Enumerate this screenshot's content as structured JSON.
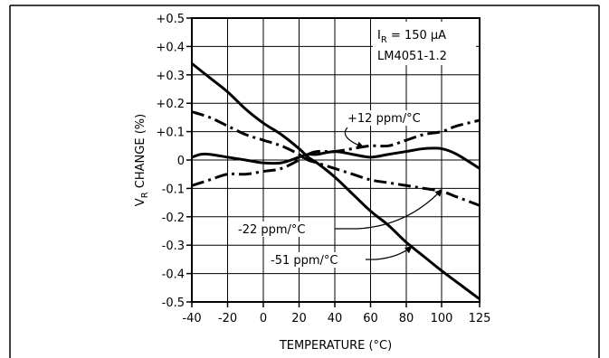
{
  "chart_data": {
    "type": "line",
    "xlabel": "TEMPERATURE (°C)",
    "ylabel_main": "V",
    "ylabel_sub": "R",
    "ylabel_rest": " CHANGE (%)",
    "xlim": [
      -40,
      125
    ],
    "ylim": [
      -0.5,
      0.5
    ],
    "x_ticks": [
      -40,
      -20,
      0,
      20,
      40,
      60,
      80,
      100,
      125
    ],
    "x_tick_labels": [
      "-40",
      "-20",
      "0",
      "20",
      "40",
      "60",
      "80",
      "100",
      "125"
    ],
    "y_ticks": [
      0.5,
      0.4,
      0.3,
      0.2,
      0.1,
      0,
      -0.1,
      -0.2,
      -0.3,
      -0.4,
      -0.5
    ],
    "y_tick_labels": [
      "+0.5",
      "+0.4",
      "+0.3",
      "+0.2",
      "+0.1",
      "0",
      "-0.1",
      "-0.2",
      "-0.3",
      "-0.4",
      "-0.5"
    ],
    "grid": true,
    "conditions": {
      "line1_main": "I",
      "line1_sub": "R",
      "line1_rest": " = 150 μA",
      "line2": "LM4051-1.2"
    },
    "series": [
      {
        "name": "",
        "style": "solid",
        "x": [
          -40,
          -30,
          -20,
          -10,
          0,
          10,
          20,
          25,
          30,
          40,
          50,
          60,
          70,
          80,
          90,
          100,
          110,
          125
        ],
        "y": [
          0.34,
          0.29,
          0.24,
          0.18,
          0.13,
          0.09,
          0.04,
          0.01,
          -0.01,
          -0.06,
          -0.12,
          -0.18,
          -0.23,
          -0.29,
          -0.34,
          -0.39,
          -0.43,
          -0.49
        ]
      },
      {
        "name": "",
        "style": "solid",
        "x": [
          -40,
          -35,
          -30,
          -20,
          -10,
          0,
          10,
          20,
          25,
          30,
          40,
          50,
          60,
          70,
          80,
          90,
          100,
          110,
          125
        ],
        "y": [
          0.01,
          0.02,
          0.02,
          0.01,
          0.0,
          -0.01,
          -0.01,
          0.01,
          0.02,
          0.02,
          0.03,
          0.02,
          0.01,
          0.02,
          0.03,
          0.04,
          0.04,
          0.02,
          -0.03
        ]
      },
      {
        "name": "",
        "style": "dashdot",
        "x": [
          -40,
          -30,
          -20,
          -10,
          0,
          10,
          20,
          25,
          30,
          40,
          50,
          60,
          70,
          80,
          90,
          100,
          110,
          125
        ],
        "y": [
          0.17,
          0.15,
          0.12,
          0.09,
          0.07,
          0.05,
          0.02,
          0.0,
          -0.01,
          -0.03,
          -0.05,
          -0.07,
          -0.08,
          -0.09,
          -0.1,
          -0.11,
          -0.13,
          -0.16
        ]
      },
      {
        "name": "",
        "style": "dashdot",
        "x": [
          -40,
          -30,
          -20,
          -10,
          0,
          10,
          20,
          25,
          30,
          40,
          50,
          60,
          70,
          80,
          90,
          100,
          110,
          125
        ],
        "y": [
          -0.09,
          -0.07,
          -0.05,
          -0.05,
          -0.04,
          -0.03,
          0.0,
          0.02,
          0.03,
          0.03,
          0.04,
          0.05,
          0.05,
          0.07,
          0.09,
          0.1,
          0.12,
          0.14
        ]
      }
    ],
    "annotations": [
      {
        "text": "+12 ppm/°C",
        "points_to": [
          56,
          0.045
        ]
      },
      {
        "text": "-22 ppm/°C",
        "points_to": [
          100,
          -0.105
        ]
      },
      {
        "text": "-51 ppm/°C",
        "points_to": [
          83,
          -0.305
        ]
      }
    ]
  }
}
